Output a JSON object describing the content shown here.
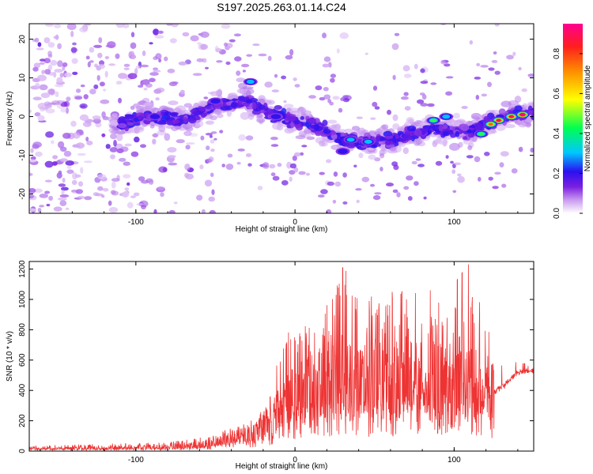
{
  "chart_data": [
    {
      "type": "heatmap",
      "title": "S197.2025.263.01.14.C24",
      "xlabel": "Height of straight line (km)",
      "ylabel": "Frequency (Hz)",
      "xlim": [
        -167,
        150
      ],
      "ylim": [
        -25,
        24
      ],
      "x_ticks": [
        -100,
        0,
        100
      ],
      "x_tick_labels": [
        "-100",
        "0",
        "100"
      ],
      "y_ticks": [
        -20,
        -10,
        0,
        10,
        20
      ],
      "y_tick_labels": [
        "-20",
        "-10",
        "0",
        "10",
        "20"
      ],
      "colorbar": {
        "label": "Normalized spectral amplitude",
        "range": [
          0,
          0.95
        ],
        "ticks": [
          0,
          0.2,
          0.4,
          0.6,
          0.8
        ],
        "tick_labels": [
          "0.0",
          "0.2",
          "0.4",
          "0.6",
          "0.8"
        ]
      },
      "ridge": {
        "description_points_x": [
          -110,
          -90,
          -70,
          -50,
          -30,
          -10,
          10,
          30,
          50,
          70,
          90,
          110,
          130,
          150
        ],
        "description_points_freq": [
          -2,
          0,
          -1,
          3,
          4,
          0,
          -2,
          -6,
          -7,
          -5,
          -3,
          -4,
          0,
          1
        ]
      },
      "hot_spots": [
        {
          "x": 128,
          "y": -1,
          "amp": 0.9
        },
        {
          "x": 136,
          "y": 0,
          "amp": 0.88
        },
        {
          "x": 143,
          "y": 0.5,
          "amp": 0.95
        },
        {
          "x": 123,
          "y": -2,
          "amp": 0.75
        },
        {
          "x": 117,
          "y": -4.5,
          "amp": 0.5
        },
        {
          "x": 87,
          "y": -1,
          "amp": 0.45
        },
        {
          "x": 95,
          "y": 0,
          "amp": 0.35
        },
        {
          "x": 35,
          "y": -6,
          "amp": 0.3
        },
        {
          "x": 30,
          "y": -9,
          "amp": 0.25
        },
        {
          "x": 46,
          "y": -6.5,
          "amp": 0.3
        },
        {
          "x": -28,
          "y": 9,
          "amp": 0.3
        },
        {
          "x": -50,
          "y": 4,
          "amp": 0.22
        },
        {
          "x": -88,
          "y": 0,
          "amp": 0.22
        },
        {
          "x": -12,
          "y": 0,
          "amp": 0.2
        }
      ]
    },
    {
      "type": "line",
      "xlabel": "Height of straight line (km)",
      "ylabel": "SNR (10 * v/v)",
      "xlim": [
        -167,
        150
      ],
      "ylim": [
        0,
        1250
      ],
      "x_ticks": [
        -100,
        0,
        100
      ],
      "x_tick_labels": [
        "-100",
        "0",
        "100"
      ],
      "y_ticks": [
        0,
        200,
        400,
        600,
        800,
        1000,
        1200
      ],
      "y_tick_labels": [
        "0",
        "200",
        "400",
        "600",
        "800",
        "1000",
        "1200"
      ],
      "series": [
        {
          "name": "SNR",
          "color": "#ee3333",
          "envelope_x": [
            -167,
            -80,
            -60,
            -40,
            -25,
            -15,
            -10,
            -5,
            0,
            10,
            20,
            30,
            40,
            50,
            60,
            70,
            80,
            90,
            100,
            110,
            118,
            125,
            140,
            150
          ],
          "envelope_median": [
            15,
            25,
            40,
            80,
            130,
            200,
            300,
            330,
            380,
            430,
            460,
            480,
            470,
            460,
            470,
            480,
            500,
            480,
            470,
            480,
            470,
            380,
            520,
            530
          ],
          "envelope_max": [
            35,
            60,
            90,
            150,
            220,
            380,
            750,
            780,
            800,
            900,
            1000,
            1210,
            1100,
            1000,
            1050,
            1100,
            1120,
            1000,
            1100,
            1250,
            900,
            760,
            600,
            560
          ],
          "peaks": [
            {
              "x": 30,
              "y": 1215
            },
            {
              "x": 32,
              "y": 1200
            },
            {
              "x": 102,
              "y": 1210
            },
            {
              "x": 105,
              "y": 1250
            },
            {
              "x": 85,
              "y": 1080
            },
            {
              "x": 70,
              "y": 1000
            }
          ]
        }
      ]
    }
  ]
}
